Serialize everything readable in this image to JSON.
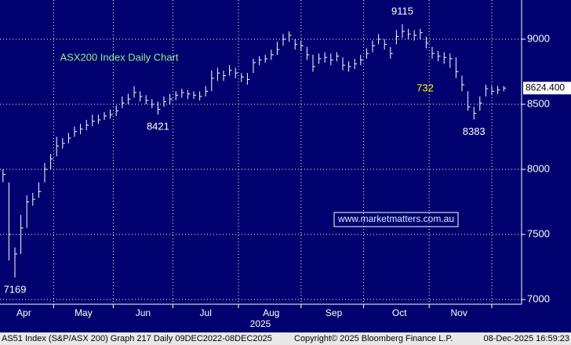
{
  "chart_data": {
    "type": "ohlc",
    "title": "ASX200 Index Daily Chart",
    "watermark": "www.marketmatters.com.au",
    "note": "732",
    "year_label": "2025",
    "footer_left": "AS51 Index (S&P/ASX 200) Graph 217 Daily 09DEC2022-08DEC2025",
    "footer_mid": "Copyright© 2025 Bloomberg Finance L.P.",
    "footer_right": "08-Dec-2025 16:59:23",
    "color": "#ffffff",
    "background": "#00006e",
    "grid": true,
    "xlim": [
      0,
      175
    ],
    "ylim": [
      6964,
      9301
    ],
    "yticks": [
      7000,
      7500,
      8000,
      8500,
      9000
    ],
    "xticks": [
      {
        "value": 8,
        "label": "Apr"
      },
      {
        "value": 28,
        "label": "May"
      },
      {
        "value": 48,
        "label": "Jun"
      },
      {
        "value": 69,
        "label": "Jul"
      },
      {
        "value": 91,
        "label": "Aug"
      },
      {
        "value": 112,
        "label": "Sep"
      },
      {
        "value": 134,
        "label": "Oct"
      },
      {
        "value": 154,
        "label": "Nov"
      }
    ],
    "xgrid": [
      18,
      38,
      58,
      80,
      101,
      122,
      144,
      165
    ],
    "x": [
      1,
      3,
      5,
      7,
      9,
      11,
      13,
      15,
      17,
      19,
      21,
      23,
      25,
      27,
      29,
      31,
      33,
      35,
      37,
      39,
      41,
      43,
      45,
      47,
      49,
      51,
      53,
      55,
      57,
      59,
      61,
      63,
      65,
      67,
      69,
      71,
      73,
      75,
      77,
      79,
      81,
      83,
      85,
      87,
      89,
      91,
      93,
      95,
      97,
      99,
      101,
      103,
      105,
      107,
      109,
      111,
      113,
      115,
      117,
      119,
      121,
      123,
      125,
      127,
      129,
      131,
      133,
      135,
      137,
      139,
      141,
      143,
      145,
      147,
      149,
      151,
      153,
      155,
      157,
      159,
      161,
      163,
      165,
      167,
      169
    ],
    "series": [
      {
        "name": "high",
        "values": [
          8000,
          7900,
          7400,
          7650,
          7800,
          7820,
          7900,
          8050,
          8120,
          8250,
          8240,
          8280,
          8330,
          8350,
          8380,
          8420,
          8420,
          8440,
          8460,
          8490,
          8560,
          8580,
          8640,
          8600,
          8570,
          8540,
          8520,
          8560,
          8580,
          8600,
          8620,
          8610,
          8600,
          8600,
          8640,
          8760,
          8780,
          8760,
          8800,
          8780,
          8740,
          8740,
          8850,
          8870,
          8880,
          8920,
          8980,
          9040,
          9060,
          9000,
          8990,
          8940,
          8880,
          8890,
          8900,
          8890,
          8900,
          8860,
          8830,
          8850,
          8880,
          8930,
          8990,
          9040,
          9000,
          8940,
          9070,
          9115,
          9080,
          9070,
          9080,
          9020,
          8940,
          8910,
          8900,
          8890,
          8860,
          8720,
          8600,
          8480,
          8560,
          8650,
          8640,
          8640,
          8640
        ]
      },
      {
        "name": "low",
        "values": [
          7900,
          7300,
          7169,
          7350,
          7550,
          7720,
          7780,
          7900,
          8000,
          8100,
          8160,
          8200,
          8250,
          8270,
          8300,
          8330,
          8350,
          8380,
          8390,
          8410,
          8470,
          8500,
          8550,
          8520,
          8500,
          8470,
          8421,
          8480,
          8500,
          8530,
          8550,
          8540,
          8540,
          8530,
          8560,
          8600,
          8680,
          8680,
          8720,
          8700,
          8670,
          8650,
          8740,
          8800,
          8820,
          8840,
          8880,
          8950,
          8980,
          8920,
          8910,
          8840,
          8750,
          8810,
          8820,
          8800,
          8830,
          8760,
          8750,
          8770,
          8800,
          8850,
          8900,
          8960,
          8920,
          8850,
          8960,
          9010,
          9000,
          8990,
          9000,
          8930,
          8850,
          8830,
          8810,
          8780,
          8700,
          8600,
          8450,
          8383,
          8450,
          8560,
          8570,
          8580,
          8600
        ]
      },
      {
        "name": "close",
        "values": [
          7960,
          7500,
          7350,
          7550,
          7750,
          7770,
          7830,
          8000,
          8080,
          8180,
          8200,
          8240,
          8290,
          8310,
          8340,
          8370,
          8380,
          8410,
          8420,
          8450,
          8510,
          8540,
          8590,
          8560,
          8530,
          8500,
          8460,
          8520,
          8540,
          8570,
          8590,
          8580,
          8570,
          8560,
          8600,
          8700,
          8740,
          8720,
          8760,
          8740,
          8710,
          8690,
          8820,
          8840,
          8850,
          8880,
          8920,
          9000,
          9030,
          8960,
          8950,
          8880,
          8790,
          8850,
          8860,
          8840,
          8870,
          8800,
          8790,
          8810,
          8840,
          8890,
          8950,
          9000,
          8960,
          8890,
          9020,
          9060,
          9040,
          9030,
          9050,
          8970,
          8890,
          8870,
          8860,
          8850,
          8750,
          8650,
          8480,
          8430,
          8510,
          8620,
          8600,
          8610,
          8624.4
        ]
      }
    ],
    "last_value": {
      "value": 8624.4,
      "label": "8624.400"
    },
    "annotations": [
      {
        "x": 5,
        "value": 7169
      },
      {
        "x": 53,
        "value": 8421
      },
      {
        "x": 135,
        "value": 9115
      },
      {
        "x": 159,
        "value": 8383
      }
    ]
  }
}
